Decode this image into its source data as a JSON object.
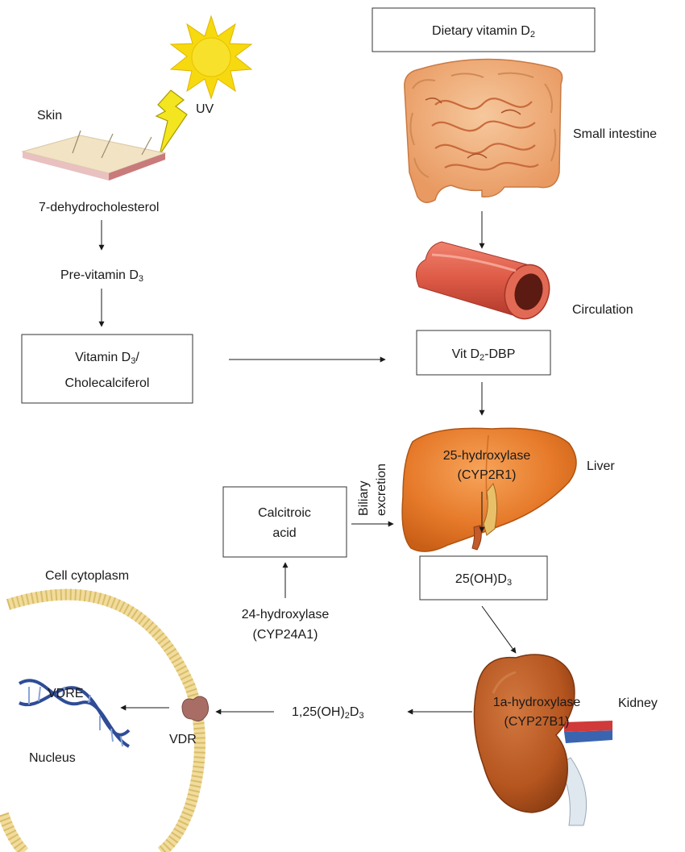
{
  "labels": {
    "skin": "Skin",
    "uv": "UV",
    "dehydro": "7-dehydrocholesterol",
    "previt_main": "Pre-vitamin D",
    "previt_sub": "3",
    "vitd3_line1_main": "Vitamin D",
    "vitd3_line1_sub": "3",
    "vitd3_line1_tail": "/",
    "vitd3_line2": "Cholecalciferol",
    "dietary_main": "Dietary vitamin D",
    "dietary_sub": "2",
    "small_intestine": "Small intestine",
    "circulation": "Circulation",
    "vitdbp_main": "Vit D",
    "vitdbp_sub": "2",
    "vitdbp_tail": "-DBP",
    "liver": "Liver",
    "hydroxylase25_line1": "25-hydroxylase",
    "hydroxylase25_line2": "(CYP2R1)",
    "biliary_line1": "Biliary",
    "biliary_line2": "excretion",
    "calcitroic_line1": "Calcitroic",
    "calcitroic_line2": "acid",
    "ohd3_main": "25(OH)D",
    "ohd3_sub": "3",
    "hydroxylase24_line1": "24-hydroxylase",
    "hydroxylase24_line2": "(CYP24A1)",
    "cell_cytoplasm": "Cell cytoplasm",
    "vdre": "VDRE",
    "nucleus": "Nucleus",
    "vdr": "VDR",
    "calcitriol_a": "1,25(OH)",
    "calcitriol_sub1": "2",
    "calcitriol_b": "D",
    "calcitriol_sub2": "3",
    "hydroxylase1a_line1": "1a-hydroxylase",
    "hydroxylase1a_line2": "(CYP27B1)",
    "kidney": "Kidney"
  },
  "colors": {
    "sun": "#f6d90f",
    "skin": "#f1e3c4",
    "intestine": "#eeb07f",
    "vessel": "#dd5a46",
    "liver": "#e67a2a",
    "kidney": "#b5551f",
    "membrane": "#f1dc9c",
    "dna": "#2f4c96",
    "receptor": "#a86e66"
  }
}
